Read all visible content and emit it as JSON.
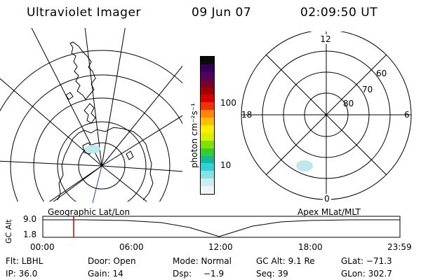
{
  "header": {
    "title": "Ultraviolet Imager",
    "date": "09 Jun 07",
    "time": "02:09:50 UT"
  },
  "colorbar": {
    "label": "photon cm⁻²s⁻¹",
    "ticks": [
      "100",
      "10"
    ],
    "colors": [
      "#0a0a0a",
      "#330055",
      "#55005f",
      "#770033",
      "#a00000",
      "#d40000",
      "#f53000",
      "#ff8800",
      "#ffbf00",
      "#ffee00",
      "#d8f000",
      "#80e000",
      "#33cc33",
      "#11bb99",
      "#33d0d8",
      "#88e0e8",
      "#cdeef0",
      "#eef6f6"
    ]
  },
  "polar_plot": {
    "labels": {
      "top": "12",
      "bottom": "0",
      "left": "18",
      "right": "6"
    },
    "rings": [
      "60",
      "70",
      "80"
    ]
  },
  "bottom_panel": {
    "left_label": "Geographic Lat/Lon",
    "right_label": "Apex MLat/MLT",
    "y_axis_label": "GC Alt",
    "y_ticks": [
      "9.0",
      "1.8"
    ],
    "x_ticks": [
      "00:00",
      "06:00",
      "12:00",
      "18:00",
      "23:59"
    ]
  },
  "status": {
    "row1": {
      "filter": "Flt: LBHL",
      "door": "Door: Open",
      "mode": "Mode: Normal",
      "gc_alt": "GC Alt: 9.1 Re",
      "glat": "GLat: −71.3"
    },
    "row2": {
      "ip": "IP: 36.0",
      "gain": "Gain: 14",
      "dsp_label": "Dsp:",
      "dsp_value": "−1.9",
      "seq": "Seq: 39",
      "glon": "GLon: 302.7"
    }
  },
  "accent": {
    "time_marker": "#cc0000",
    "aurora": "#bde8ec"
  }
}
